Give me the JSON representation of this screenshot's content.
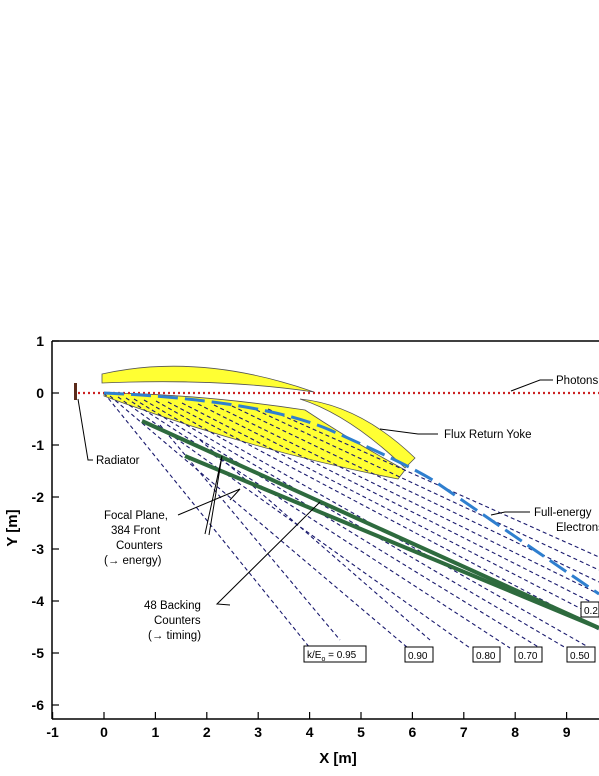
{
  "axes": {
    "xlabel": "X [m]",
    "ylabel": "Y [m]",
    "xlim": [
      -1.1,
      9.7
    ],
    "ylim": [
      -6.3,
      1.1
    ],
    "xticks": [
      "-1",
      "0",
      "1",
      "2",
      "3",
      "4",
      "5",
      "6",
      "7",
      "8",
      "9"
    ],
    "yticks": [
      "1",
      "0",
      "-1",
      "-2",
      "-3",
      "-4",
      "-5",
      "-6"
    ]
  },
  "labels": {
    "radiator": "Radiator",
    "photons": "Photons",
    "flux_return_yoke": "Flux Return Yoke",
    "full_energy_1": "Full-energy",
    "full_energy_2": "Electrons",
    "focal_plane_1": "Focal Plane,",
    "focal_plane_2": "384 Front",
    "focal_plane_3": "Counters",
    "focal_plane_4": "(→ energy)",
    "backing_1": "48 Backing",
    "backing_2": "Counters",
    "backing_3": "(→ timing)"
  },
  "energy_fractions": {
    "prefix": "k/E",
    "subscript": "o",
    "equals": " = ",
    "items": [
      "0.95",
      "0.90",
      "0.80",
      "0.70",
      "0.50",
      "0.2"
    ]
  },
  "colors": {
    "magnet": "#ffff33",
    "photon_line": "#cc2222",
    "electron_line": "#2f7fcf",
    "focal_plane": "#2e6b3e",
    "tracks": "#1a1a6e"
  }
}
